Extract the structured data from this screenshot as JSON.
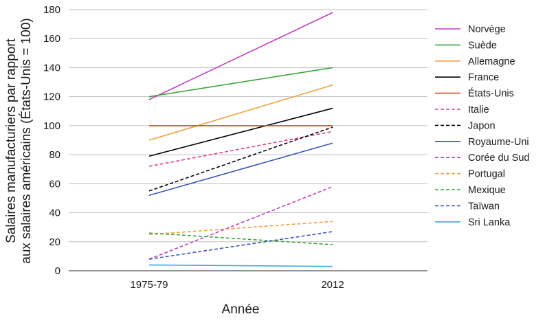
{
  "chart_data": {
    "type": "line",
    "title": "",
    "xlabel": "Année",
    "ylabel_line1": "Salaires manufacturiers par rapport",
    "ylabel_line2": "aux salaires américains (États-Unis = 100)",
    "categories": [
      "1975-79",
      "2012"
    ],
    "ylim": [
      0,
      180
    ],
    "yticks": [
      0,
      20,
      40,
      60,
      80,
      100,
      120,
      140,
      160,
      180
    ],
    "grid": "horizontal",
    "legend_position": "right",
    "series": [
      {
        "name": "Norvège",
        "values": [
          118,
          178
        ],
        "color": "#c03fc0",
        "dash": "solid"
      },
      {
        "name": "Suède",
        "values": [
          120,
          140
        ],
        "color": "#3aa63a",
        "dash": "solid"
      },
      {
        "name": "Allemagne",
        "values": [
          90,
          128
        ],
        "color": "#f0a040",
        "dash": "solid"
      },
      {
        "name": "France",
        "values": [
          79,
          112
        ],
        "color": "#000000",
        "dash": "solid"
      },
      {
        "name": "États-Unis",
        "values": [
          100,
          100
        ],
        "color": "#e0441a",
        "dash": "solid"
      },
      {
        "name": "Italie",
        "values": [
          72,
          96
        ],
        "color": "#e0408a",
        "dash": "dashed"
      },
      {
        "name": "Japon",
        "values": [
          55,
          99
        ],
        "color": "#000000",
        "dash": "dashed"
      },
      {
        "name": "Royaume-Uni",
        "values": [
          52,
          88
        ],
        "color": "#3a57b0",
        "dash": "solid"
      },
      {
        "name": "Corée du Sud",
        "values": [
          8,
          58
        ],
        "color": "#c03fc0",
        "dash": "dashed"
      },
      {
        "name": "Portugal",
        "values": [
          25,
          34
        ],
        "color": "#f0a040",
        "dash": "dashed"
      },
      {
        "name": "Mexique",
        "values": [
          26,
          18
        ],
        "color": "#3aa63a",
        "dash": "dashed"
      },
      {
        "name": "Taïwan",
        "values": [
          8,
          27
        ],
        "color": "#3a57b0",
        "dash": "dashed"
      },
      {
        "name": "Sri Lanka",
        "values": [
          4,
          3
        ],
        "color": "#3aaee8",
        "dash": "solid"
      }
    ]
  }
}
